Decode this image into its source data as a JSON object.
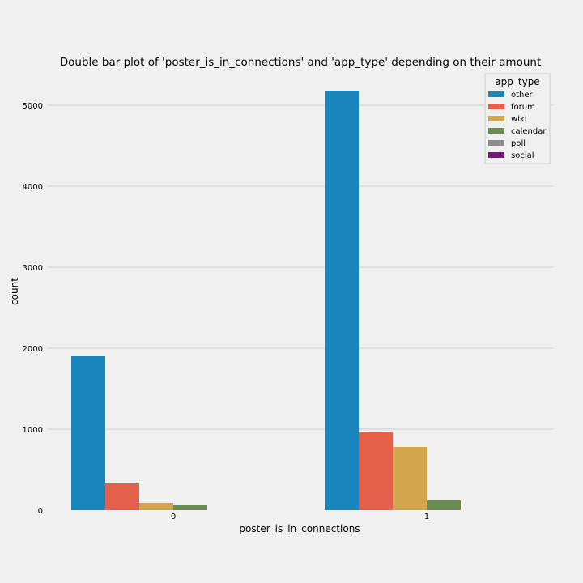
{
  "chart_data": {
    "type": "bar",
    "title": "Double bar plot of 'poster_is_in_connections' and 'app_type' depending on their amount",
    "xlabel": "poster_is_in_connections",
    "ylabel": "count",
    "categories": [
      "0",
      "1"
    ],
    "ylim": [
      0,
      5400
    ],
    "yticks": [
      0,
      1000,
      2000,
      3000,
      4000,
      5000
    ],
    "grid": "horizontal",
    "legend": {
      "title": "app_type",
      "position": "top-right"
    },
    "series": [
      {
        "name": "other",
        "color": "#1a86bc",
        "values": [
          1900,
          5180
        ]
      },
      {
        "name": "forum",
        "color": "#e5604a",
        "values": [
          330,
          960
        ]
      },
      {
        "name": "wiki",
        "color": "#d1a64e",
        "values": [
          90,
          780
        ]
      },
      {
        "name": "calendar",
        "color": "#6d8a53",
        "values": [
          60,
          120
        ]
      },
      {
        "name": "poll",
        "color": "#8c8c8c",
        "values": [
          0,
          0
        ]
      },
      {
        "name": "social",
        "color": "#6b1f6e",
        "values": [
          0,
          0
        ]
      }
    ]
  }
}
